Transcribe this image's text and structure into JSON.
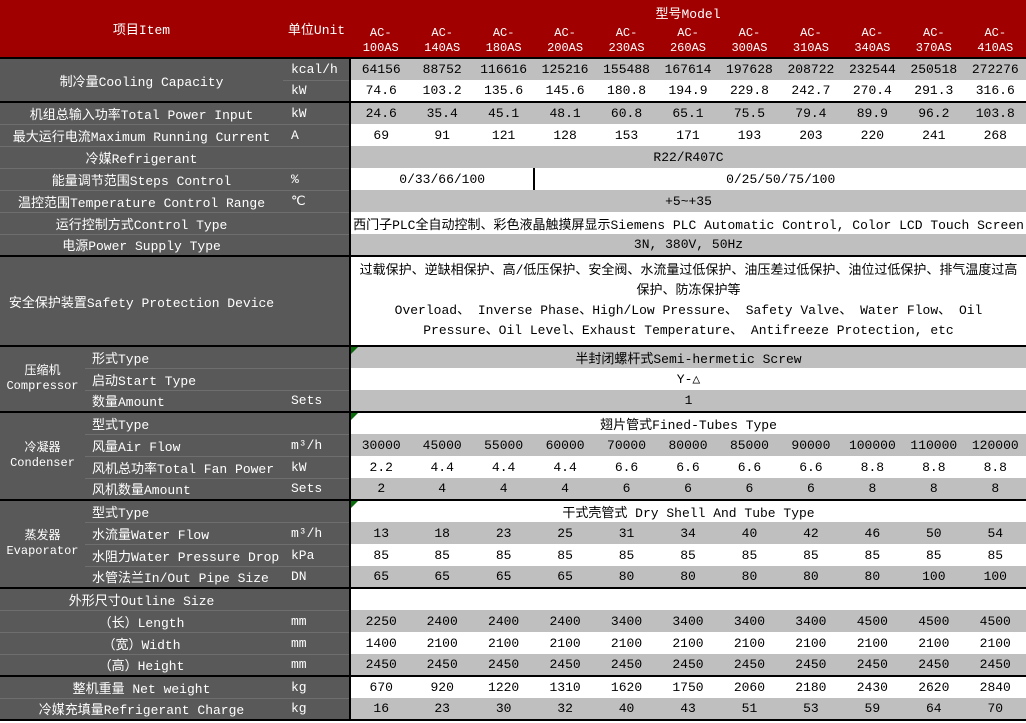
{
  "colors": {
    "header_red": "#A00000",
    "label_gray": "#595959",
    "band_gray": "#BFBFBF",
    "marker_green": "#0A6B0A"
  },
  "header": {
    "item_label": "项目Item",
    "unit_label": "单位Unit",
    "model_label": "型号Model",
    "models": [
      "AC-100AS",
      "AC-140AS",
      "AC-180AS",
      "AC-200AS",
      "AC-230AS",
      "AC-260AS",
      "AC-300AS",
      "AC-310AS",
      "AC-340AS",
      "AC-370AS",
      "AC-410AS"
    ]
  },
  "rows": [
    {
      "id": "cooling-capacity-kcal",
      "label": "制冷量Cooling Capacity",
      "label_rows": 2,
      "unit": "kcal/h",
      "shade": "gray",
      "values": [
        "64156",
        "88752",
        "116616",
        "125216",
        "155488",
        "167614",
        "197628",
        "208722",
        "232544",
        "250518",
        "272276"
      ]
    },
    {
      "id": "cooling-capacity-kw",
      "unit": "kW",
      "shade": "white",
      "values": [
        "74.6",
        "103.2",
        "135.6",
        "145.6",
        "180.8",
        "194.9",
        "229.8",
        "242.7",
        "270.4",
        "291.3",
        "316.6"
      ]
    },
    {
      "id": "total-power-input",
      "label": "机组总输入功率Total Power Input",
      "unit": "kW",
      "shade": "gray",
      "section": true,
      "values": [
        "24.6",
        "35.4",
        "45.1",
        "48.1",
        "60.8",
        "65.1",
        "75.5",
        "79.4",
        "89.9",
        "96.2",
        "103.8"
      ]
    },
    {
      "id": "max-running-current",
      "label": "最大运行电流Maximum Running Current",
      "unit": "A",
      "shade": "white",
      "values": [
        "69",
        "91",
        "121",
        "128",
        "153",
        "171",
        "193",
        "203",
        "220",
        "241",
        "268"
      ]
    },
    {
      "id": "refrigerant",
      "label": "冷媒Refrigerant",
      "unit": "",
      "shade": "gray",
      "span": "R22/R407C"
    },
    {
      "id": "steps-control",
      "label": "能量调节范围Steps Control",
      "unit": "%",
      "shade": "white",
      "split": [
        {
          "text": "0/33/66/100",
          "cols": 3
        },
        {
          "text": "0/25/50/75/100",
          "cols": 8
        }
      ]
    },
    {
      "id": "temp-control-range",
      "label": "温控范围Temperature Control Range",
      "unit": "℃",
      "shade": "gray",
      "span": "+5~+35"
    },
    {
      "id": "control-type",
      "label": "运行控制方式Control Type",
      "unit": "",
      "shade": "white",
      "span": "西门子PLC全自动控制、彩色液晶触摸屏显示Siemens PLC Automatic Control, Color LCD Touch Screen"
    },
    {
      "id": "power-supply",
      "label": "电源Power Supply Type",
      "unit": "",
      "shade": "gray",
      "span": "3N, 380V, 50Hz"
    },
    {
      "id": "safety-protection",
      "label": "安全保护装置Safety Protection Device",
      "unit": "",
      "shade": "white",
      "section": true,
      "tall": true,
      "span": "过载保护、逆缺相保护、高/低压保护、安全阀、水流量过低保护、油压差过低保护、油位过低保护、排气温度过高保护、防冻保护等\nOverload、 Inverse Phase、High/Low Pressure、 Safety Valve、 Water Flow、 Oil Pressure、Oil Level、Exhaust Temperature、 Antifreeze Protection, etc"
    },
    {
      "id": "compressor-type",
      "group": "压缩机\nCompressor",
      "group_rows": 3,
      "label": "形式Type",
      "unit": "",
      "shade": "gray",
      "section": true,
      "marker": true,
      "span": "半封闭螺杆式Semi-hermetic Screw"
    },
    {
      "id": "compressor-start-type",
      "label": "启动Start Type",
      "unit": "",
      "shade": "white",
      "span": "Y-△"
    },
    {
      "id": "compressor-amount",
      "label": "数量Amount",
      "unit": "Sets",
      "shade": "gray",
      "span": "1"
    },
    {
      "id": "condenser-type",
      "group": "冷凝器\nCondenser",
      "group_rows": 4,
      "label": "型式Type",
      "unit": "",
      "shade": "white",
      "section": true,
      "marker": true,
      "span": "翅片管式Fined-Tubes Type"
    },
    {
      "id": "condenser-air-flow",
      "label": "风量Air Flow",
      "unit": "m³/h",
      "shade": "gray",
      "values": [
        "30000",
        "45000",
        "55000",
        "60000",
        "70000",
        "80000",
        "85000",
        "90000",
        "100000",
        "110000",
        "120000"
      ]
    },
    {
      "id": "condenser-fan-power",
      "label": "风机总功率Total Fan Power",
      "unit": "kW",
      "shade": "white",
      "values": [
        "2.2",
        "4.4",
        "4.4",
        "4.4",
        "6.6",
        "6.6",
        "6.6",
        "6.6",
        "8.8",
        "8.8",
        "8.8"
      ]
    },
    {
      "id": "condenser-fan-amount",
      "label": "风机数量Amount",
      "unit": "Sets",
      "shade": "gray",
      "values": [
        "2",
        "4",
        "4",
        "4",
        "6",
        "6",
        "6",
        "6",
        "8",
        "8",
        "8"
      ]
    },
    {
      "id": "evaporator-type",
      "group": "蒸发器\nEvaporator",
      "group_rows": 4,
      "label": "型式Type",
      "unit": "",
      "shade": "white",
      "section": true,
      "marker": true,
      "span": "干式壳管式 Dry Shell And Tube Type"
    },
    {
      "id": "evaporator-water-flow",
      "label": "水流量Water Flow",
      "unit": "m³/h",
      "shade": "gray",
      "values": [
        "13",
        "18",
        "23",
        "25",
        "31",
        "34",
        "40",
        "42",
        "46",
        "50",
        "54"
      ]
    },
    {
      "id": "evaporator-pressure-drop",
      "label": "水阻力Water Pressure Drop",
      "unit": "kPa",
      "shade": "white",
      "values": [
        "85",
        "85",
        "85",
        "85",
        "85",
        "85",
        "85",
        "85",
        "85",
        "85",
        "85"
      ]
    },
    {
      "id": "evaporator-pipe-size",
      "label": "水管法兰In/Out Pipe Size",
      "unit": "DN",
      "shade": "gray",
      "values": [
        "65",
        "65",
        "65",
        "65",
        "80",
        "80",
        "80",
        "80",
        "80",
        "100",
        "100"
      ]
    },
    {
      "id": "outline-size",
      "label": "外形尺寸Outline Size",
      "unit": "",
      "shade": "white",
      "section": true,
      "span": ""
    },
    {
      "id": "length",
      "label": "（长）Length",
      "unit": "mm",
      "shade": "gray",
      "values": [
        "2250",
        "2400",
        "2400",
        "2400",
        "3400",
        "3400",
        "3400",
        "3400",
        "4500",
        "4500",
        "4500"
      ]
    },
    {
      "id": "width",
      "label": "（宽）Width",
      "unit": "mm",
      "shade": "white",
      "values": [
        "1400",
        "2100",
        "2100",
        "2100",
        "2100",
        "2100",
        "2100",
        "2100",
        "2100",
        "2100",
        "2100"
      ]
    },
    {
      "id": "height",
      "label": "（高）Height",
      "unit": "mm",
      "shade": "gray",
      "values": [
        "2450",
        "2450",
        "2450",
        "2450",
        "2450",
        "2450",
        "2450",
        "2450",
        "2450",
        "2450",
        "2450"
      ]
    },
    {
      "id": "net-weight",
      "label": "整机重量 Net weight",
      "unit": "kg",
      "shade": "white",
      "section": true,
      "values": [
        "670",
        "920",
        "1220",
        "1310",
        "1620",
        "1750",
        "2060",
        "2180",
        "2430",
        "2620",
        "2840"
      ]
    },
    {
      "id": "refrigerant-charge",
      "label": "冷媒充填量Refrigerant Charge",
      "unit": "kg",
      "shade": "gray",
      "values": [
        "16",
        "23",
        "30",
        "32",
        "40",
        "43",
        "51",
        "53",
        "59",
        "64",
        "70"
      ]
    }
  ]
}
